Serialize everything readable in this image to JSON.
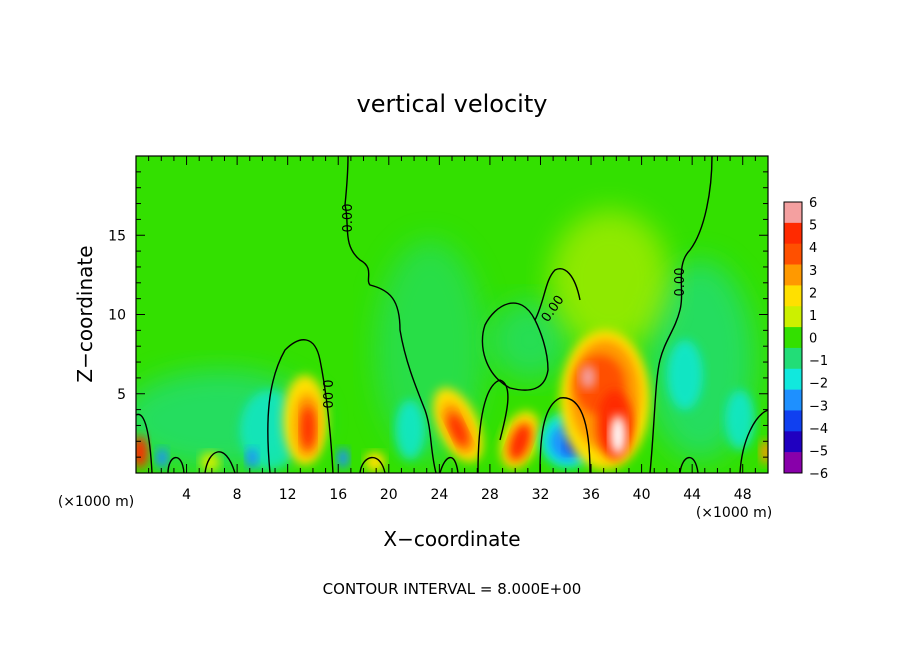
{
  "chart_data": {
    "type": "heatmap",
    "title": "vertical velocity",
    "xlabel": "X−coordinate",
    "ylabel": "Z−coordinate",
    "x_unit_left": "(×1000 m)",
    "x_unit_right": "(×1000 m)",
    "footer": "CONTOUR INTERVAL = 8.000E+00",
    "xlim": [
      0,
      50
    ],
    "ylim": [
      0,
      20
    ],
    "xticks": [
      4,
      8,
      12,
      16,
      20,
      24,
      28,
      32,
      36,
      40,
      44,
      48
    ],
    "yticks": [
      5,
      10,
      15
    ],
    "contour_label": "0.00",
    "colorbar": {
      "levels": [
        "6",
        "5",
        "4",
        "3",
        "2",
        "1",
        "0",
        "−1",
        "−2",
        "−3",
        "−4",
        "−5",
        "−6"
      ],
      "colors": [
        "#f4a0a0",
        "#ff2a00",
        "#ff5000",
        "#ff9900",
        "#ffe000",
        "#ccf000",
        "#33e000",
        "#22dd77",
        "#11e8dd",
        "#1e90ff",
        "#1040f0",
        "#2000c0",
        "#8800aa"
      ]
    },
    "field_background": "#33e000",
    "features": [
      {
        "x": 0.5,
        "z": 1.0,
        "w": 0.4
      },
      {
        "x": 13.2,
        "z": 2.8,
        "w": 6.0
      },
      {
        "x": 25.5,
        "z": 2.5,
        "w": 6.0
      },
      {
        "x": 30.5,
        "z": 2.0,
        "w": 5.0
      },
      {
        "x": 33.5,
        "z": 1.9,
        "w": -4.5
      },
      {
        "x": 36.5,
        "z": 6.2,
        "w": 5.5
      },
      {
        "x": 38.2,
        "z": 2.5,
        "w": 6.0
      },
      {
        "x": 48.0,
        "z": 1.8,
        "w": -2.0
      },
      {
        "x": 9.5,
        "z": 2.3,
        "w": -2.5
      },
      {
        "x": 21.0,
        "z": 2.2,
        "w": -2.5
      }
    ]
  }
}
